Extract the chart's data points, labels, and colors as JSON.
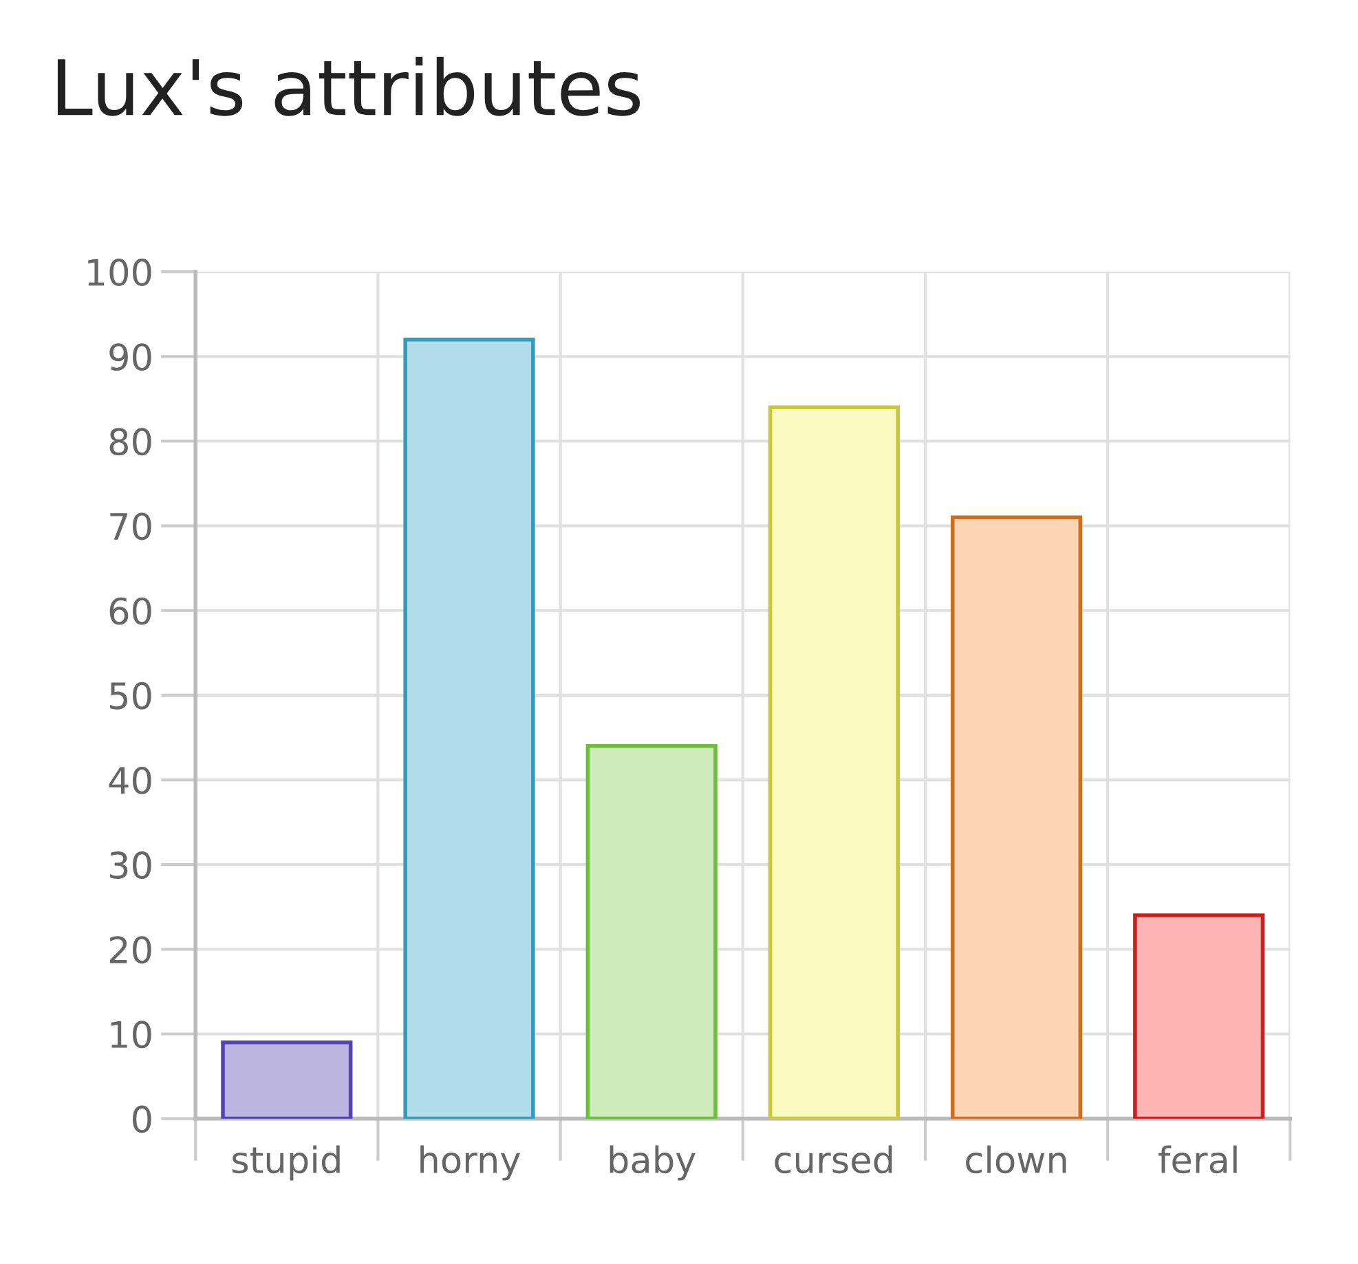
{
  "chart_data": {
    "type": "bar",
    "title": "Lux's attributes",
    "categories": [
      "stupid",
      "horny",
      "baby",
      "cursed",
      "clown",
      "feral"
    ],
    "values": [
      9,
      92,
      44,
      84,
      71,
      24
    ],
    "colors": [
      "#bbb5e0",
      "#b2dce9",
      "#cdecba",
      "#fafac0",
      "#fdd5b5",
      "#ffb4b4"
    ],
    "ylim": [
      0,
      100
    ],
    "yticks": [
      0,
      10,
      20,
      30,
      40,
      50,
      60,
      70,
      80,
      90,
      100
    ],
    "grid": true
  }
}
